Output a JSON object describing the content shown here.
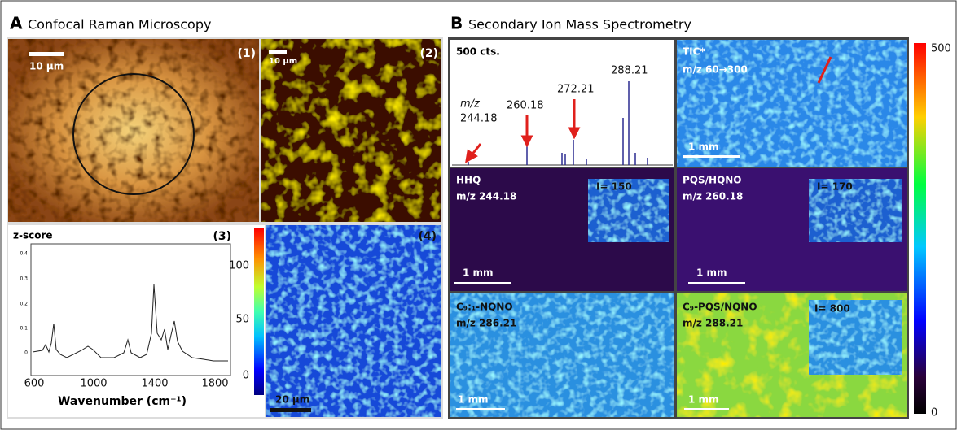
{
  "panel_a": {
    "letter": "A",
    "title": "Confocal Raman Microscopy",
    "images": [
      {
        "label": "(1)",
        "scale": "10 µm"
      },
      {
        "label": "(2)",
        "scale": "10 µm"
      }
    ],
    "spectrum": {
      "label": "(3)",
      "title": "z-score",
      "x_label": "Wavenumber (cm⁻¹)",
      "x_ticks": [
        "600",
        "1000",
        "1400",
        "1800"
      ],
      "y_ticks": [
        "0.4",
        "0.3",
        "0.2",
        "0.1",
        "0"
      ]
    },
    "colorbar_ticks": [
      "100",
      "50",
      "0"
    ],
    "map": {
      "label": "(4)",
      "scale": "20 µm"
    }
  },
  "panel_b": {
    "letter": "B",
    "title": "Secondary Ion Mass Spectrometry",
    "spectrum": {
      "counts": "500 cts.",
      "axis": "m/z",
      "peaks": [
        "244.18",
        "260.18",
        "272.21",
        "288.21"
      ]
    },
    "tiles": [
      {
        "name": "TIC*",
        "mz": "m/z 60→300",
        "scale": "1 mm"
      },
      {
        "name": "HHQ",
        "mz": "m/z 244.18",
        "inset": "I= 150",
        "scale": "1 mm"
      },
      {
        "name": "PQS/HQNO",
        "mz": "m/z 260.18",
        "inset": "I= 170",
        "scale": "1 mm"
      },
      {
        "name": "C₉:₁-NQNO",
        "mz": "m/z 286.21",
        "scale": "1 mm"
      },
      {
        "name": "C₉-PQS/NQNO",
        "mz": "m/z 288.21",
        "inset": "I= 800",
        "scale": "1 mm"
      }
    ],
    "colorbar_ticks": [
      "500",
      "0"
    ]
  }
}
